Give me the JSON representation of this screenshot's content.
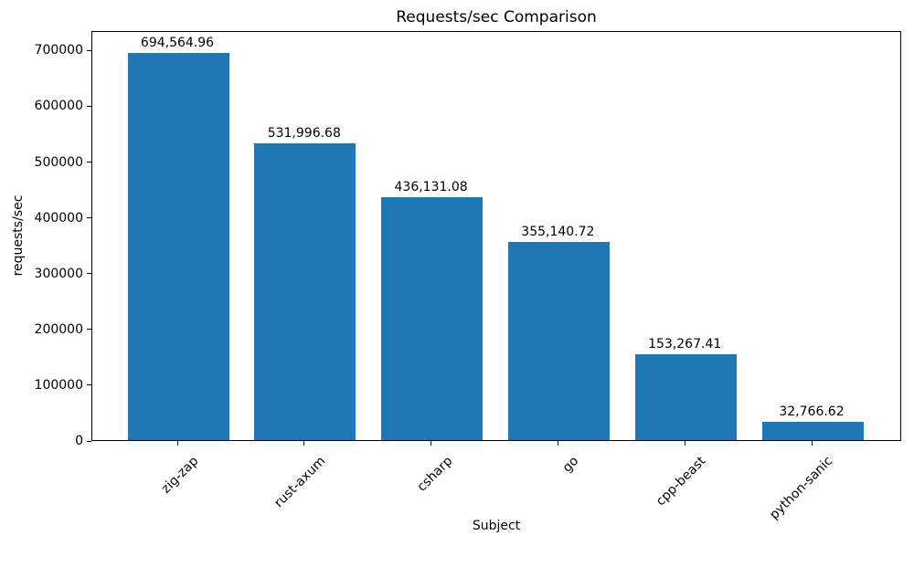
{
  "figure": {
    "background": "#ffffff",
    "text_color": "#000000"
  },
  "chart_data": {
    "type": "bar",
    "title": "Requests/sec Comparison",
    "xlabel": "Subject",
    "ylabel": "requests/sec",
    "categories": [
      "zig-zap",
      "rust-axum",
      "csharp",
      "go",
      "cpp-beast",
      "python-sanic"
    ],
    "values": [
      694564.96,
      531996.68,
      436131.08,
      355140.72,
      153267.41,
      32766.62
    ],
    "value_labels": [
      "694,564.96",
      "531,996.68",
      "436,131.08",
      "355,140.72",
      "153,267.41",
      "32,766.62"
    ],
    "yticks": [
      0,
      100000,
      200000,
      300000,
      400000,
      500000,
      600000,
      700000
    ],
    "ytick_labels": [
      "0",
      "100000",
      "200000",
      "300000",
      "400000",
      "500000",
      "600000",
      "700000"
    ],
    "ylim": [
      0,
      735000
    ],
    "bar_color": "#1f77b4",
    "grid": false,
    "legend": "none",
    "xtick_rotation_deg": 45
  }
}
